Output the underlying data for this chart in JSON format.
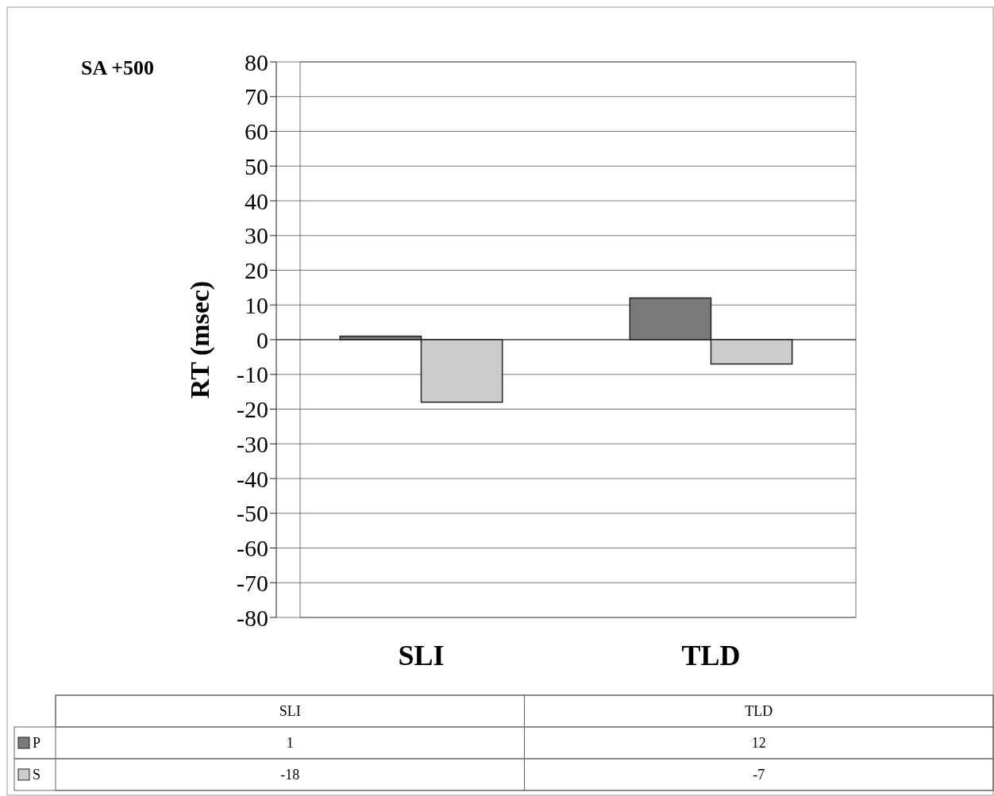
{
  "chart_data": {
    "type": "bar",
    "title": "SA +500",
    "ylabel": "RT (msec)",
    "categories": [
      "SLI",
      "TLD"
    ],
    "series": [
      {
        "name": "P",
        "color": "#7a7a7a",
        "values": [
          1,
          12
        ]
      },
      {
        "name": "S",
        "color": "#cdcdcd",
        "values": [
          -18,
          -7
        ]
      }
    ],
    "ylim": [
      -80,
      80
    ],
    "yticks": [
      -80,
      -70,
      -60,
      -50,
      -40,
      -30,
      -20,
      -10,
      0,
      10,
      20,
      30,
      40,
      50,
      60,
      70,
      80
    ],
    "grid": "y",
    "legend": "bottom",
    "data_labels": true
  }
}
